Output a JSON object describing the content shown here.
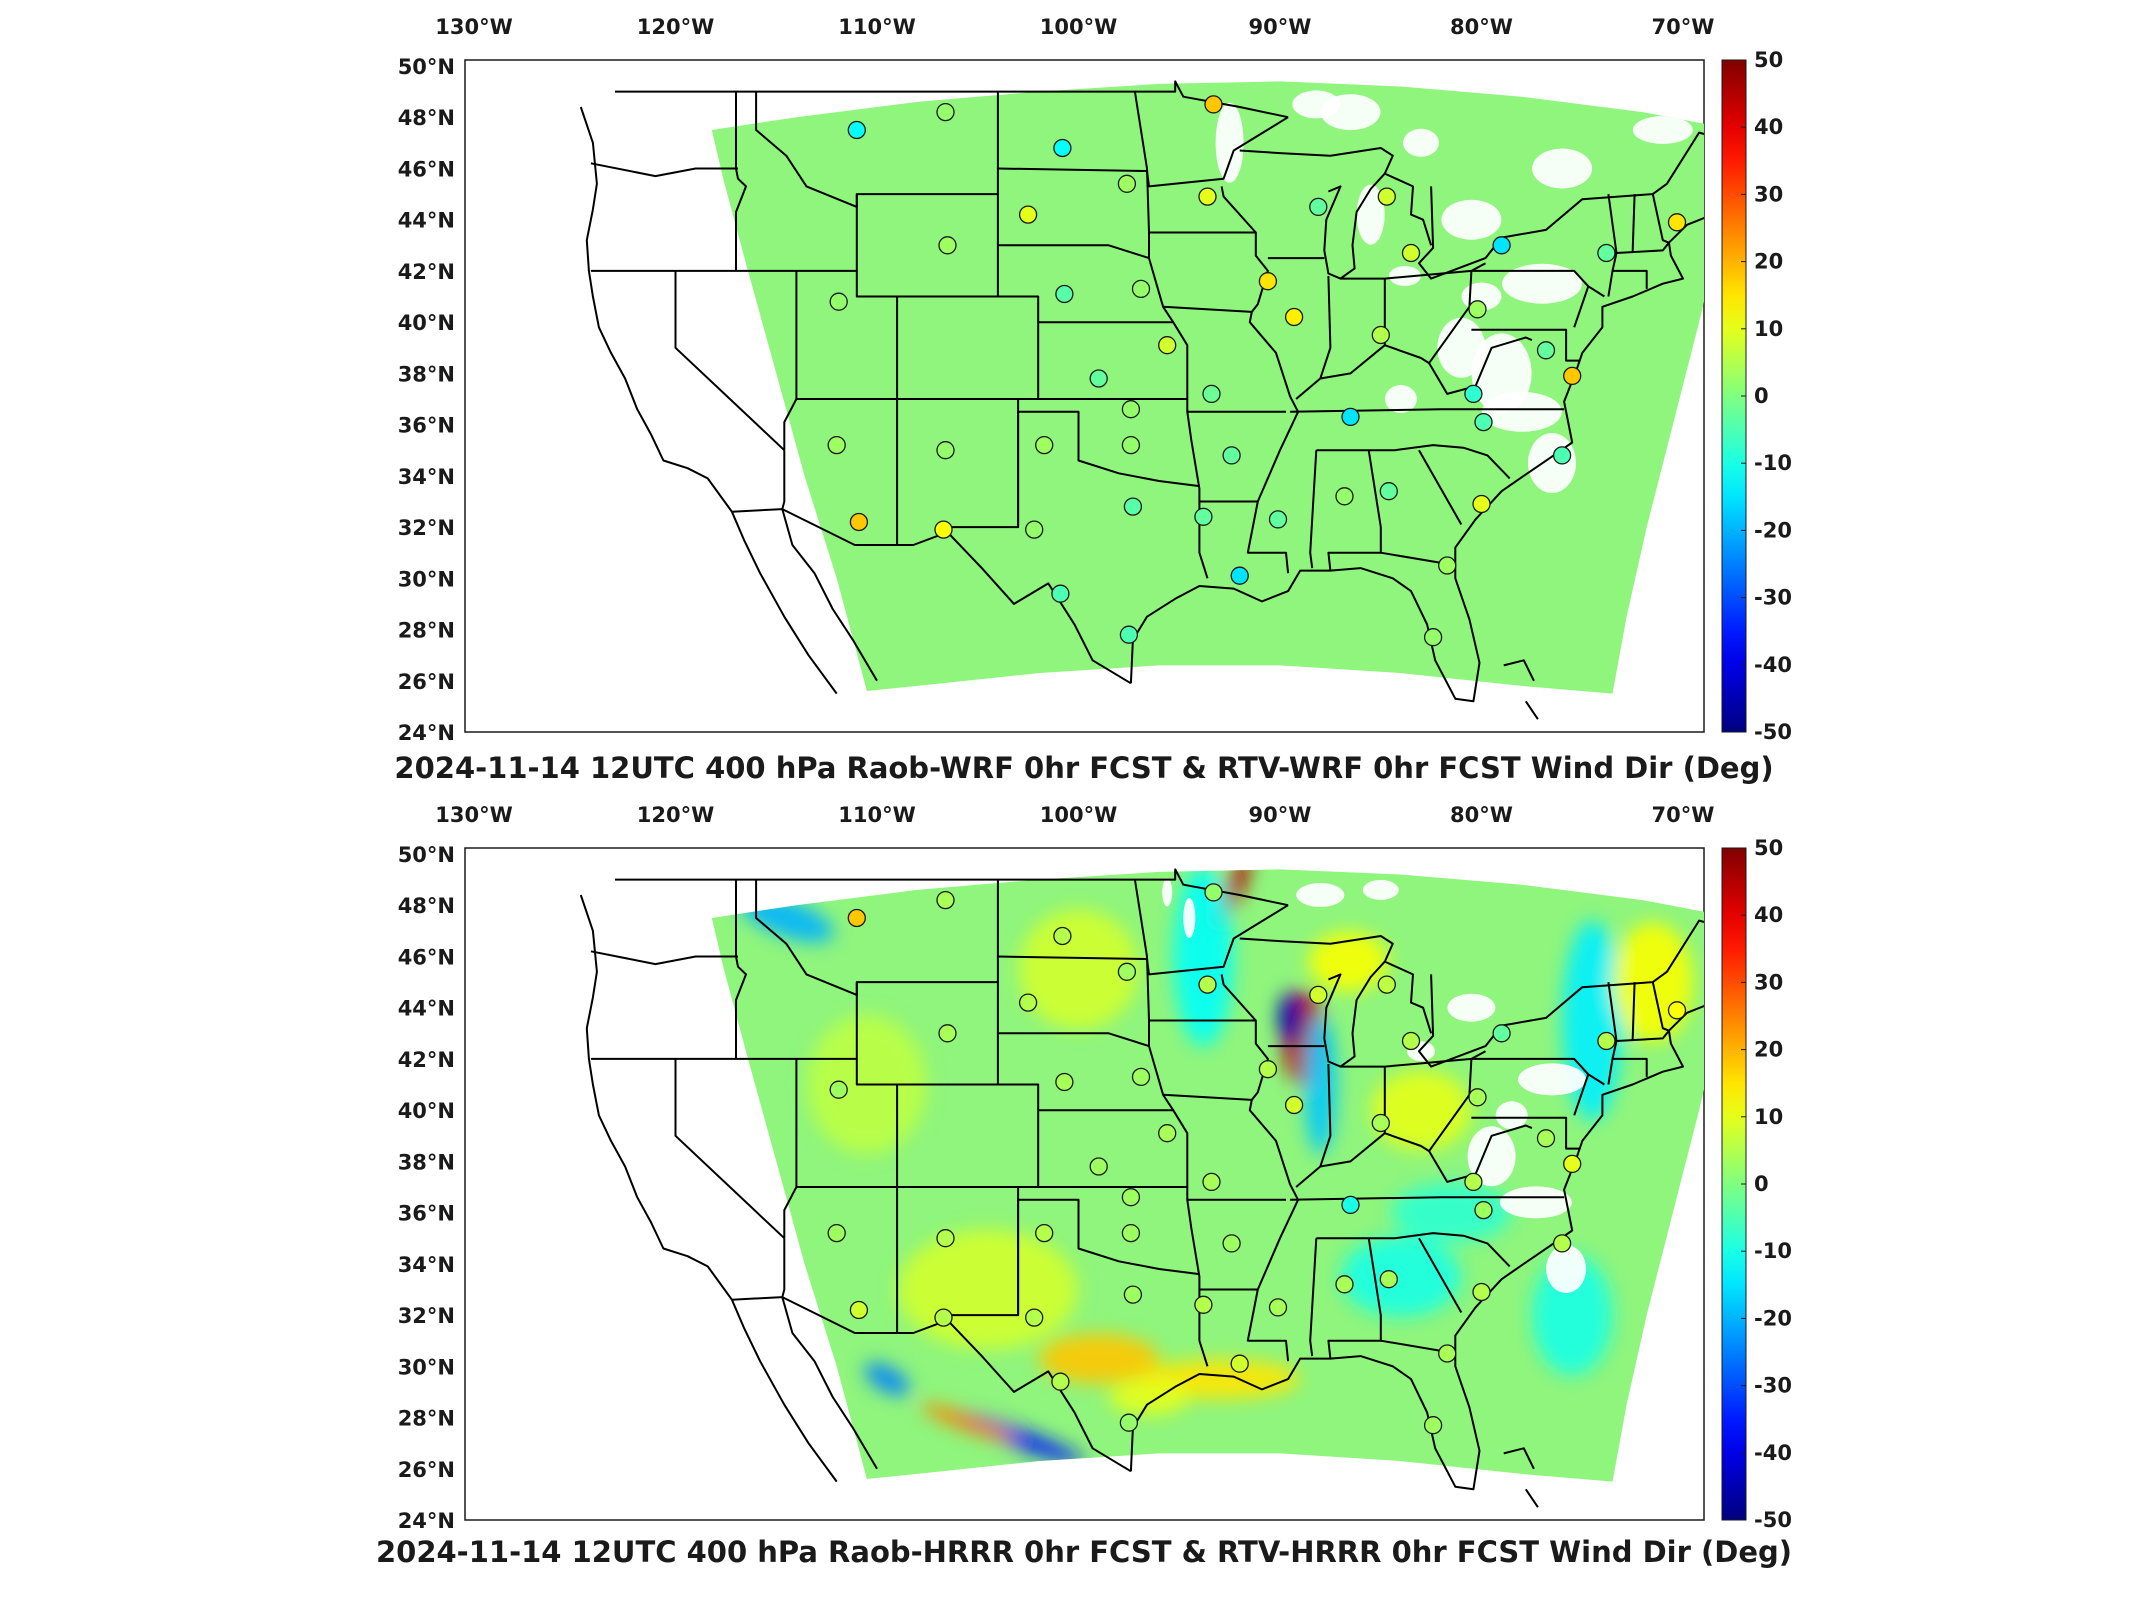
{
  "colorbar": {
    "min": -50,
    "max": 50,
    "tick_labels": [
      "50",
      "40",
      "30",
      "20",
      "10",
      "0",
      "-10",
      "-20",
      "-30",
      "-40",
      "-50"
    ]
  },
  "colors": {
    "background_field": "#8ff57d",
    "jet_low": "#00008f",
    "jet_mid": "#80ff80",
    "jet_high": "#800000",
    "boundary": "#000000"
  },
  "axes": {
    "lon_labels": [
      "130°W",
      "120°W",
      "110°W",
      "100°W",
      "90°W",
      "80°W",
      "70°W"
    ],
    "lat_labels": [
      "50°N",
      "48°N",
      "46°N",
      "44°N",
      "42°N",
      "40°N",
      "38°N",
      "36°N",
      "34°N",
      "32°N",
      "30°N",
      "28°N",
      "26°N",
      "24°N"
    ]
  },
  "panels": [
    {
      "title": "2024-11-14 12UTC 400 hPa Raob-WRF 0hr FCST & RTV-WRF 0hr FCST Wind Dir (Deg)",
      "model": "WRF"
    },
    {
      "title": "2024-11-14 12UTC 400 hPa Raob-HRRR 0hr FCST & RTV-HRRR 0hr FCST Wind Dir (Deg)",
      "model": "HRRR"
    }
  ],
  "stations": [
    {
      "lon": -111.0,
      "lat": 47.5,
      "v1": -12,
      "v2": 18
    },
    {
      "lon": -106.6,
      "lat": 48.2,
      "v1": 2,
      "v2": 4
    },
    {
      "lon": -100.8,
      "lat": 46.8,
      "v1": -12,
      "v2": 5
    },
    {
      "lon": -97.6,
      "lat": 45.4,
      "v1": 3,
      "v2": 3
    },
    {
      "lon": -93.3,
      "lat": 48.5,
      "v1": 18,
      "v2": 2
    },
    {
      "lon": -93.6,
      "lat": 44.9,
      "v1": 10,
      "v2": 5
    },
    {
      "lon": -88.1,
      "lat": 44.5,
      "v1": -3,
      "v2": 8
    },
    {
      "lon": -84.7,
      "lat": 44.9,
      "v1": 8,
      "v2": 6
    },
    {
      "lon": -83.5,
      "lat": 42.7,
      "v1": 8,
      "v2": 5
    },
    {
      "lon": -79.0,
      "lat": 43.0,
      "v1": -15,
      "v2": -3
    },
    {
      "lon": -73.8,
      "lat": 42.7,
      "v1": -3,
      "v2": 5
    },
    {
      "lon": -70.3,
      "lat": 43.9,
      "v1": 15,
      "v2": 12
    },
    {
      "lon": -102.5,
      "lat": 44.2,
      "v1": 10,
      "v2": 5
    },
    {
      "lon": -106.5,
      "lat": 43.0,
      "v1": 3,
      "v2": 4
    },
    {
      "lon": -111.9,
      "lat": 40.8,
      "v1": 2,
      "v2": 3
    },
    {
      "lon": -100.7,
      "lat": 41.1,
      "v1": -4,
      "v2": 4
    },
    {
      "lon": -96.9,
      "lat": 41.3,
      "v1": 2,
      "v2": 3
    },
    {
      "lon": -90.6,
      "lat": 41.6,
      "v1": 15,
      "v2": 5
    },
    {
      "lon": -89.3,
      "lat": 40.2,
      "v1": 14,
      "v2": 8
    },
    {
      "lon": -85.0,
      "lat": 39.5,
      "v1": 5,
      "v2": 4
    },
    {
      "lon": -80.2,
      "lat": 40.5,
      "v1": 3,
      "v2": 4
    },
    {
      "lon": -76.8,
      "lat": 38.9,
      "v1": -3,
      "v2": 4
    },
    {
      "lon": -75.5,
      "lat": 37.9,
      "v1": 18,
      "v2": 10
    },
    {
      "lon": -80.4,
      "lat": 37.2,
      "v1": -8,
      "v2": 5
    },
    {
      "lon": -79.9,
      "lat": 36.1,
      "v1": -5,
      "v2": 3
    },
    {
      "lon": -76.0,
      "lat": 34.8,
      "v1": -5,
      "v2": 5
    },
    {
      "lon": -80.0,
      "lat": 32.9,
      "v1": 10,
      "v2": 5
    },
    {
      "lon": -86.5,
      "lat": 36.3,
      "v1": -15,
      "v2": -10
    },
    {
      "lon": -84.6,
      "lat": 33.4,
      "v1": -3,
      "v2": 4
    },
    {
      "lon": -86.8,
      "lat": 33.2,
      "v1": 2,
      "v2": 4
    },
    {
      "lon": -90.1,
      "lat": 32.3,
      "v1": -3,
      "v2": 4
    },
    {
      "lon": -92.4,
      "lat": 34.8,
      "v1": -3,
      "v2": 3
    },
    {
      "lon": -93.4,
      "lat": 37.2,
      "v1": -2,
      "v2": 4
    },
    {
      "lon": -95.6,
      "lat": 39.1,
      "v1": 8,
      "v2": 4
    },
    {
      "lon": -99.0,
      "lat": 37.8,
      "v1": -3,
      "v2": 3
    },
    {
      "lon": -97.4,
      "lat": 36.6,
      "v1": 2,
      "v2": 3
    },
    {
      "lon": -97.4,
      "lat": 35.2,
      "v1": 2,
      "v2": 3
    },
    {
      "lon": -101.7,
      "lat": 35.2,
      "v1": 3,
      "v2": 5
    },
    {
      "lon": -106.6,
      "lat": 35.0,
      "v1": 2,
      "v2": 5
    },
    {
      "lon": -112.0,
      "lat": 35.2,
      "v1": 3,
      "v2": 3
    },
    {
      "lon": -110.9,
      "lat": 32.2,
      "v1": 18,
      "v2": 8
    },
    {
      "lon": -106.7,
      "lat": 31.9,
      "v1": 12,
      "v2": 5
    },
    {
      "lon": -102.2,
      "lat": 31.9,
      "v1": 2,
      "v2": 5
    },
    {
      "lon": -97.3,
      "lat": 32.8,
      "v1": -4,
      "v2": 3
    },
    {
      "lon": -93.8,
      "lat": 32.4,
      "v1": -3,
      "v2": 5
    },
    {
      "lon": -92.0,
      "lat": 30.1,
      "v1": -15,
      "v2": 8
    },
    {
      "lon": -100.9,
      "lat": 29.4,
      "v1": -5,
      "v2": 5
    },
    {
      "lon": -97.5,
      "lat": 27.8,
      "v1": -5,
      "v2": 2
    },
    {
      "lon": -81.7,
      "lat": 30.5,
      "v1": 3,
      "v2": 4
    },
    {
      "lon": -82.4,
      "lat": 27.7,
      "v1": 2,
      "v2": 3
    }
  ]
}
